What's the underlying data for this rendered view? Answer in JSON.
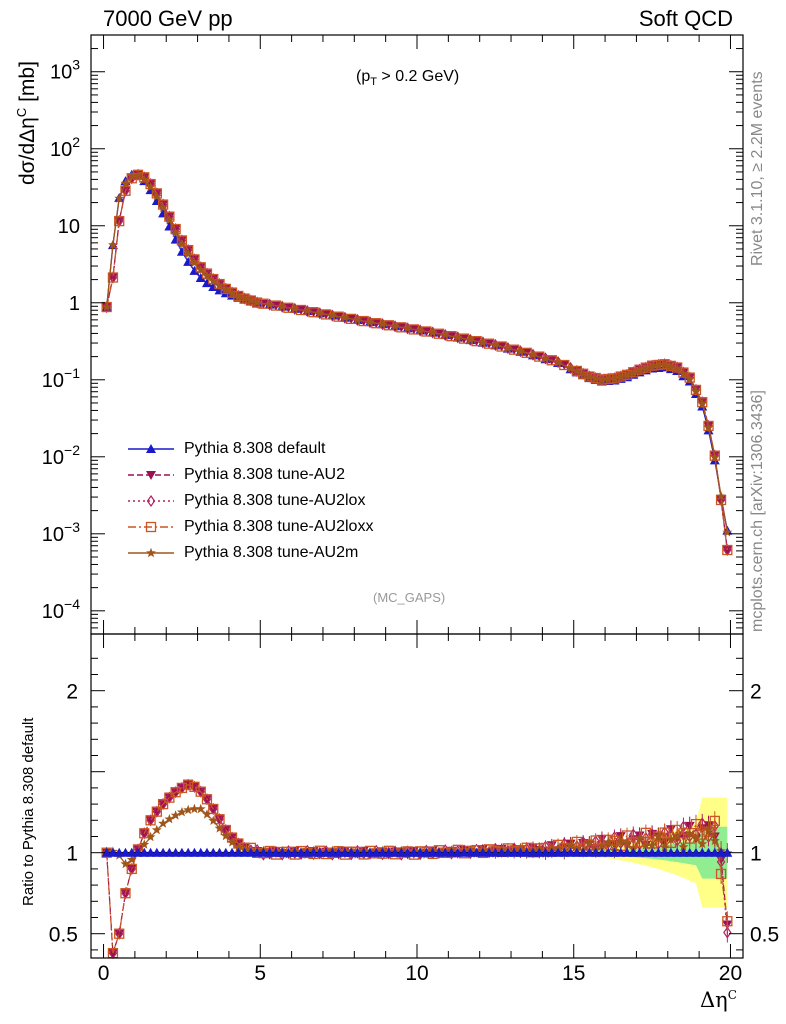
{
  "header": {
    "left": "7000 GeV pp",
    "right": "Soft QCD"
  },
  "side_text": {
    "rivet": "Rivet 3.1.10, ≥ 2.2M events",
    "mcplots": "mcplots.cern.ch [arXiv:1306.3436]"
  },
  "cut_label": {
    "pre": "(p",
    "sub": "T",
    "post": " > 0.2 GeV)"
  },
  "analysis_label": "(MC_GAPS)",
  "top_ylabel": {
    "main": "dσ/dΔη",
    "sup": "C",
    "unit": " [mb]"
  },
  "bottom_ylabel": "Ratio to Pythia 8.308 default",
  "xlabel": {
    "main": "Δη",
    "sup": "C"
  },
  "colors": {
    "default": "#1a1acc",
    "au2": "#9a1050",
    "au2lox": "#b02060",
    "au2loxx": "#cc5522",
    "au2m": "#a0561a",
    "band_green": "#90ee90",
    "band_yellow": "#ffff88"
  },
  "chart_data": [
    {
      "type": "line",
      "yscale": "log",
      "xlim": [
        -0.4,
        20.4
      ],
      "ylim": [
        5e-05,
        3000
      ],
      "y_ticks": [
        {
          "v": 0.0001,
          "base": "10",
          "exp": "−4"
        },
        {
          "v": 0.001,
          "base": "10",
          "exp": "−3"
        },
        {
          "v": 0.01,
          "base": "10",
          "exp": "−2"
        },
        {
          "v": 0.1,
          "base": "10",
          "exp": "−1"
        },
        {
          "v": 1,
          "base": "1",
          "exp": ""
        },
        {
          "v": 10,
          "base": "10",
          "exp": ""
        },
        {
          "v": 100,
          "base": "10",
          "exp": "2"
        },
        {
          "v": 1000,
          "base": "10",
          "exp": "3"
        }
      ],
      "x_ticks": [
        {
          "v": 0,
          "label": "0"
        },
        {
          "v": 5,
          "label": "5"
        },
        {
          "v": 10,
          "label": "10"
        },
        {
          "v": 15,
          "label": "15"
        },
        {
          "v": 20,
          "label": "20"
        }
      ],
      "shape_points": {
        "x": [
          0.1,
          0.3,
          0.5,
          0.7,
          0.9,
          1.1,
          1.3,
          1.5,
          1.7,
          1.9,
          2.1,
          2.3,
          2.5,
          2.7,
          2.9,
          3.1,
          3.3,
          3.5,
          3.7,
          3.9,
          4.1,
          4.3,
          4.5,
          4.7,
          4.9,
          5.5,
          6.5,
          7.5,
          8.5,
          9.5,
          10.5,
          11.5,
          12.5,
          13.5,
          14.5,
          15.1,
          15.5,
          15.9,
          16.3,
          16.7,
          17.1,
          17.5,
          17.9,
          18.3,
          18.7,
          19.1,
          19.3,
          19.5,
          19.7,
          19.9
        ],
        "y": [
          0.88,
          5.6,
          23,
          38,
          46,
          45,
          38,
          29,
          21,
          14.5,
          9.8,
          6.6,
          4.6,
          3.4,
          2.6,
          2.1,
          1.8,
          1.6,
          1.45,
          1.33,
          1.24,
          1.16,
          1.1,
          1.05,
          1.0,
          0.92,
          0.78,
          0.66,
          0.56,
          0.48,
          0.41,
          0.34,
          0.28,
          0.22,
          0.165,
          0.125,
          0.105,
          0.095,
          0.098,
          0.108,
          0.125,
          0.14,
          0.145,
          0.13,
          0.095,
          0.045,
          0.022,
          0.009,
          0.003,
          0.0011
        ]
      },
      "series": [
        {
          "name": "Pythia 8.308 default",
          "color": "#1a1acc",
          "marker": "triangle-up",
          "dash": "",
          "ratio": "default"
        },
        {
          "name": "Pythia 8.308 tune-AU2",
          "color": "#9a1050",
          "marker": "triangle-down",
          "dash": "6,3",
          "ratio": "au2"
        },
        {
          "name": "Pythia 8.308 tune-AU2lox",
          "color": "#b02060",
          "marker": "diamond",
          "dash": "2,3",
          "ratio": "au2"
        },
        {
          "name": "Pythia 8.308 tune-AU2loxx",
          "color": "#cc5522",
          "marker": "square",
          "dash": "8,3,2,3",
          "ratio": "au2"
        },
        {
          "name": "Pythia 8.308 tune-AU2m",
          "color": "#a0561a",
          "marker": "star",
          "dash": "",
          "ratio": "au2m"
        }
      ]
    },
    {
      "type": "line",
      "ylim": [
        0.35,
        2.35
      ],
      "y_ticks": [
        {
          "v": 0.5,
          "label": "0.5"
        },
        {
          "v": 1,
          "label": "1"
        },
        {
          "v": 2,
          "label": "2"
        }
      ],
      "ratio_shapes": {
        "au2": {
          "x": [
            0.1,
            0.3,
            0.5,
            0.7,
            0.9,
            1.2,
            1.5,
            1.8,
            2.1,
            2.4,
            2.7,
            3.0,
            3.3,
            3.6,
            3.9,
            4.2,
            4.5,
            5.0,
            6.0,
            10.0,
            14.0,
            16.0,
            18.0,
            19.5,
            19.8,
            19.9
          ],
          "y": [
            1.0,
            0.38,
            0.5,
            0.75,
            0.9,
            1.08,
            1.2,
            1.28,
            1.34,
            1.39,
            1.42,
            1.4,
            1.33,
            1.24,
            1.14,
            1.07,
            1.03,
            1.0,
            1.0,
            1.0,
            1.02,
            1.06,
            1.1,
            1.15,
            0.8,
            0.56
          ]
        },
        "au2m": {
          "x": [
            0.1,
            0.4,
            0.7,
            1.0,
            1.3,
            1.6,
            1.9,
            2.2,
            2.5,
            2.8,
            3.1,
            3.4,
            3.7,
            4.0,
            4.3,
            4.6,
            5.0,
            6.0,
            10.0,
            14.0,
            16.0,
            18.0,
            19.5,
            19.9
          ],
          "y": [
            1.0,
            1.01,
            0.93,
            0.97,
            1.05,
            1.12,
            1.18,
            1.22,
            1.25,
            1.27,
            1.27,
            1.22,
            1.15,
            1.08,
            1.03,
            1.01,
            1.0,
            1.0,
            1.0,
            1.01,
            1.04,
            1.07,
            1.1,
            0.95
          ]
        }
      }
    }
  ]
}
